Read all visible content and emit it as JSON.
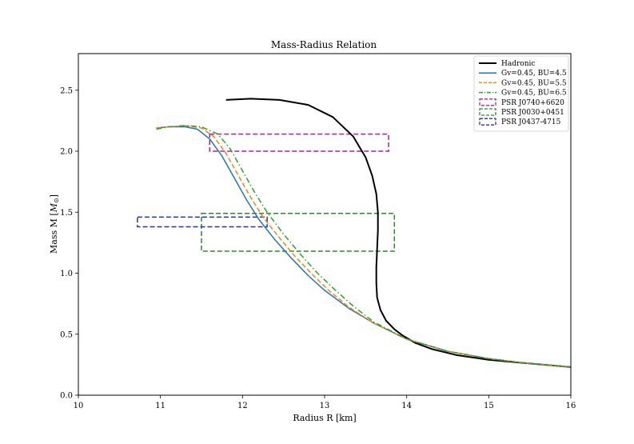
{
  "chart_data": {
    "type": "line",
    "title": "Mass-Radius Relation",
    "xlabel": "Radius R [km]",
    "ylabel": "Mass M [",
    "ylabel_unit": "M",
    "ylabel_sub": "⊙",
    "ylabel_end": "]",
    "xlim": [
      10,
      16
    ],
    "ylim": [
      0,
      2.8
    ],
    "xticks": [
      10,
      11,
      12,
      13,
      14,
      15,
      16
    ],
    "yticks": [
      0.0,
      0.5,
      1.0,
      1.5,
      2.0,
      2.5
    ],
    "xtick_labels": [
      "10",
      "11",
      "12",
      "13",
      "14",
      "15",
      "16"
    ],
    "ytick_labels": [
      "0.0",
      "0.5",
      "1.0",
      "1.5",
      "2.0",
      "2.5"
    ],
    "grid": false,
    "legend_position": "top-right",
    "series": [
      {
        "name": "Hadronic",
        "color": "#000000",
        "style": "solid",
        "x": [
          11.8,
          12.1,
          12.45,
          12.8,
          13.1,
          13.35,
          13.5,
          13.58,
          13.63,
          13.65,
          13.65,
          13.64,
          13.63,
          13.63,
          13.64,
          13.68,
          13.75,
          13.85,
          13.95,
          14.1,
          14.3,
          14.6,
          15.0,
          15.5,
          16.0
        ],
        "y": [
          2.42,
          2.43,
          2.42,
          2.38,
          2.28,
          2.12,
          1.95,
          1.8,
          1.65,
          1.5,
          1.35,
          1.2,
          1.05,
          0.92,
          0.8,
          0.7,
          0.61,
          0.54,
          0.49,
          0.43,
          0.38,
          0.33,
          0.29,
          0.26,
          0.23
        ]
      },
      {
        "name": "Gv=0.45, BU=4.5",
        "color": "#1f77b4",
        "style": "solid",
        "x": [
          10.95,
          11.1,
          11.3,
          11.45,
          11.6,
          11.75,
          11.9,
          12.05,
          12.2,
          12.4,
          12.6,
          12.8,
          13.0,
          13.3,
          13.6,
          14.0,
          14.5,
          15.0,
          15.5,
          16.0
        ],
        "y": [
          2.19,
          2.2,
          2.2,
          2.18,
          2.1,
          1.96,
          1.78,
          1.6,
          1.44,
          1.27,
          1.12,
          0.98,
          0.86,
          0.71,
          0.59,
          0.46,
          0.36,
          0.3,
          0.26,
          0.23
        ]
      },
      {
        "name": "Gv=0.45, BU=5.5",
        "color": "#ff7f0e",
        "style": "dashed",
        "x": [
          10.95,
          11.1,
          11.3,
          11.5,
          11.65,
          11.8,
          11.95,
          12.1,
          12.25,
          12.45,
          12.65,
          12.85,
          13.05,
          13.3,
          13.6,
          14.0,
          14.5,
          15.0,
          15.5,
          16.0
        ],
        "y": [
          2.19,
          2.2,
          2.21,
          2.19,
          2.12,
          1.98,
          1.8,
          1.62,
          1.46,
          1.29,
          1.13,
          0.99,
          0.86,
          0.72,
          0.59,
          0.46,
          0.36,
          0.3,
          0.26,
          0.23
        ]
      },
      {
        "name": "Gv=0.45, BU=6.5",
        "color": "#2ca02c",
        "style": "dashdot",
        "x": [
          10.95,
          11.1,
          11.3,
          11.5,
          11.7,
          11.85,
          12.0,
          12.15,
          12.3,
          12.5,
          12.7,
          12.9,
          13.1,
          13.35,
          13.6,
          14.0,
          14.5,
          15.0,
          15.5,
          16.0
        ],
        "y": [
          2.18,
          2.2,
          2.21,
          2.2,
          2.14,
          2.02,
          1.84,
          1.66,
          1.5,
          1.32,
          1.16,
          1.01,
          0.88,
          0.73,
          0.6,
          0.46,
          0.36,
          0.3,
          0.26,
          0.23
        ]
      }
    ],
    "boxes": [
      {
        "name": "PSR J0740+6620",
        "color": "#b01ea0",
        "x": [
          11.6,
          13.78
        ],
        "y": [
          2.0,
          2.14
        ]
      },
      {
        "name": "PSR J0030+0451",
        "color": "#2a8a2a",
        "x": [
          11.5,
          13.85
        ],
        "y": [
          1.18,
          1.49
        ]
      },
      {
        "name": "PSR J0437-4715",
        "color": "#2f2f9e",
        "x": [
          10.72,
          12.3
        ],
        "y": [
          1.38,
          1.46
        ]
      }
    ]
  }
}
